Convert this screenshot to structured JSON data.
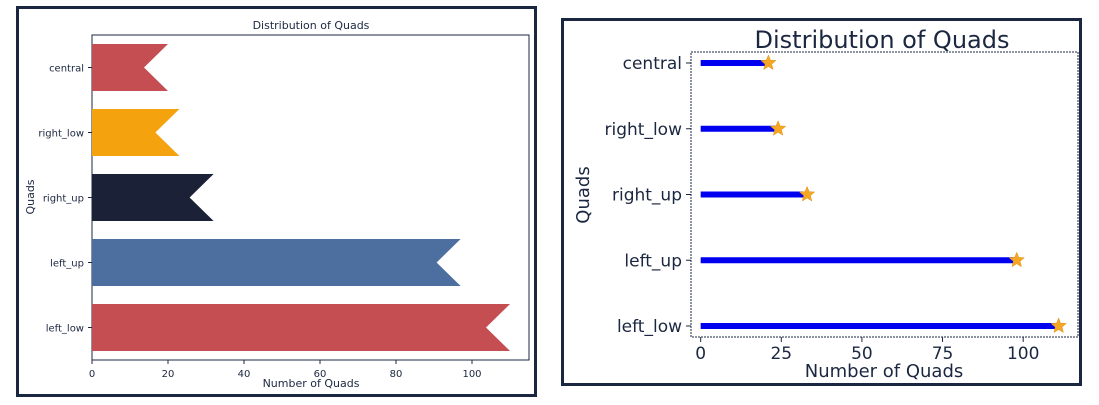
{
  "charts": [
    {
      "type": "bar",
      "title": "Distribution of Quads",
      "xlabel": "Number of Quads",
      "ylabel": "Quads",
      "categories": [
        "central",
        "right_low",
        "right_up",
        "left_up",
        "left_low"
      ],
      "values": [
        20,
        23,
        32,
        97,
        110
      ],
      "xlim": [
        0,
        115
      ],
      "xticks": [
        "0",
        "20",
        "40",
        "60",
        "80",
        "100"
      ],
      "colors": [
        "#c44e52",
        "#f5a20f",
        "#1b2238",
        "#4c6fa0",
        "#c44e52"
      ],
      "grid": false,
      "legend": "none"
    },
    {
      "type": "scatter",
      "title": "Distribution of Quads",
      "xlabel": "Number of Quads",
      "ylabel": "Quads",
      "categories": [
        "central",
        "right_low",
        "right_up",
        "left_up",
        "left_low"
      ],
      "values": [
        21,
        24,
        33,
        98,
        111
      ],
      "xlim": [
        -3,
        117
      ],
      "xticks": [
        "0",
        "25",
        "50",
        "75",
        "100"
      ],
      "line_color": "#0000f0",
      "marker_color": "#f5a623",
      "marker": "star",
      "grid": false,
      "legend": "none"
    }
  ]
}
